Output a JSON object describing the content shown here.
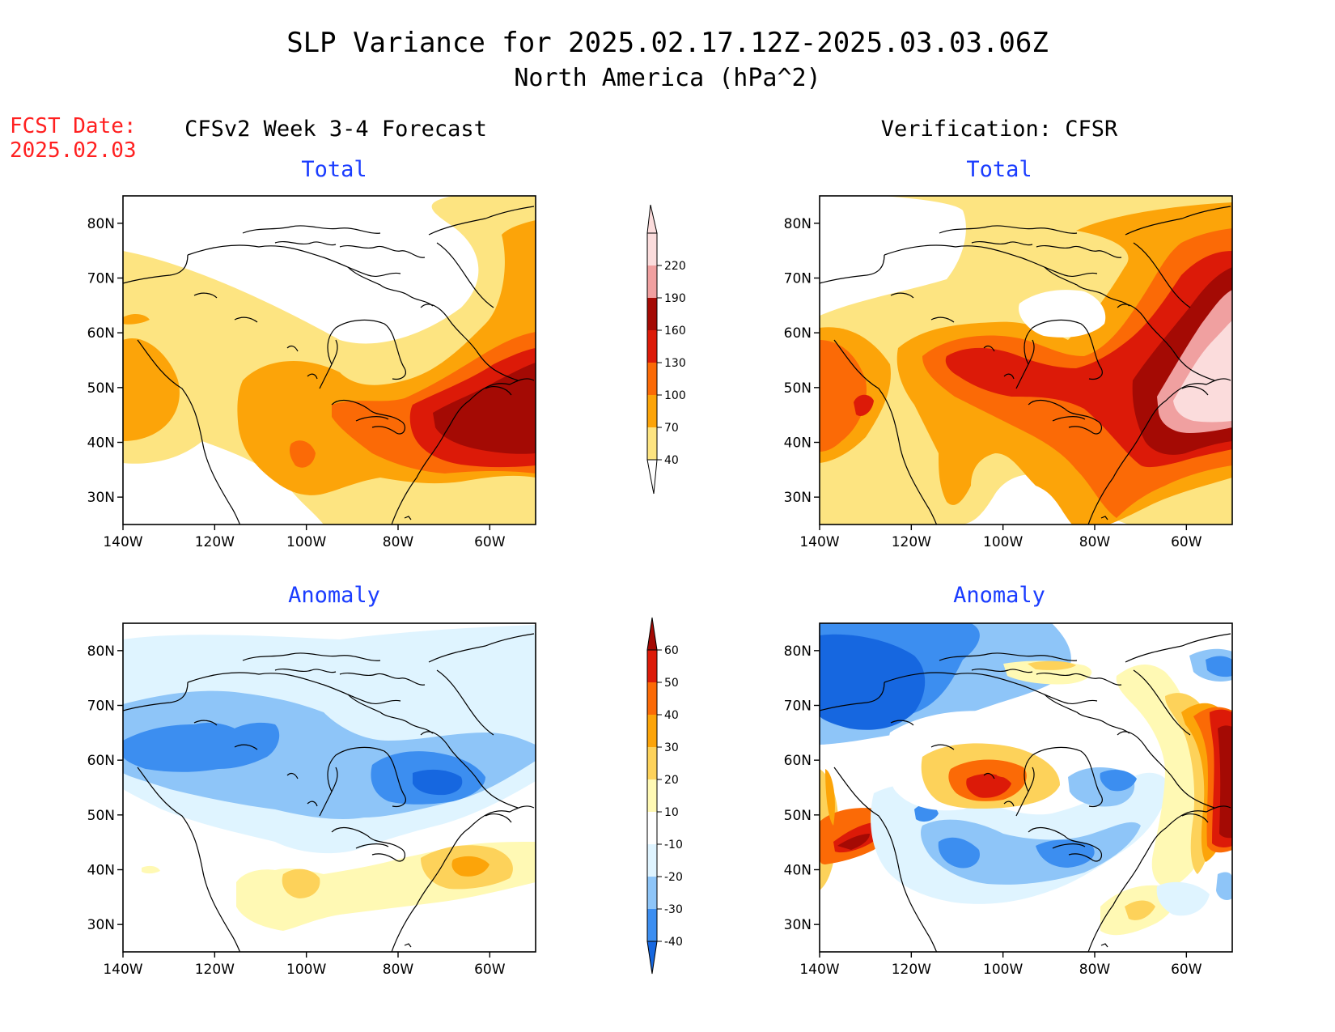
{
  "title": {
    "line1": "SLP Variance for 2025.02.17.12Z-2025.03.03.06Z",
    "line2": "North America (hPa^2)"
  },
  "fcst_label": {
    "line1": "FCST Date:",
    "line2": "2025.02.03",
    "color": "#ff2020"
  },
  "column_headers": {
    "left": "CFSv2 Week 3-4 Forecast",
    "right": "Verification: CFSR"
  },
  "panel_titles": {
    "total": "Total",
    "anomaly": "Anomaly",
    "color": "#1a3cff"
  },
  "axes": {
    "lat_ticks": [
      "80N",
      "70N",
      "60N",
      "50N",
      "40N",
      "30N"
    ],
    "lat_values": [
      80,
      70,
      60,
      50,
      40,
      30
    ],
    "lon_ticks": [
      "140W",
      "120W",
      "100W",
      "80W",
      "60W"
    ],
    "lon_values": [
      -140,
      -120,
      -100,
      -80,
      -60
    ],
    "lat_range": [
      25,
      85
    ],
    "lon_range": [
      -140,
      -50
    ]
  },
  "colorbars": {
    "total": {
      "labels": [
        "40",
        "70",
        "100",
        "130",
        "160",
        "190",
        "220"
      ],
      "colors": [
        "#fde481",
        "#fca409",
        "#fb6a06",
        "#dc1a08",
        "#a40a04",
        "#f0a0a0",
        "#fbdcdc"
      ]
    },
    "anomaly": {
      "labels": [
        "-40",
        "-30",
        "-20",
        "-10",
        "10",
        "20",
        "30",
        "40",
        "50",
        "60"
      ],
      "colors": [
        "#1667e0",
        "#3c8ef0",
        "#8ec5f8",
        "#dff4ff",
        "#ffffff",
        "#fff9b4",
        "#fdd25a",
        "#fca409",
        "#fb6a06",
        "#dc1a08",
        "#a40a04"
      ]
    }
  },
  "colors": {
    "c40": "#fde481",
    "c70": "#fca409",
    "c100": "#fb6a06",
    "c130": "#dc1a08",
    "c160": "#a40a04",
    "c190": "#f0a0a0",
    "c220": "#fbdcdc",
    "an_m40": "#1667e0",
    "an_m30": "#3c8ef0",
    "an_m20": "#8ec5f8",
    "an_m10": "#dff4ff",
    "an_p10": "#fff9b4",
    "an_p20": "#fdd25a",
    "an_p30": "#fca409",
    "an_p40": "#fb6a06",
    "an_p50": "#dc1a08",
    "an_p60": "#a40a04"
  }
}
